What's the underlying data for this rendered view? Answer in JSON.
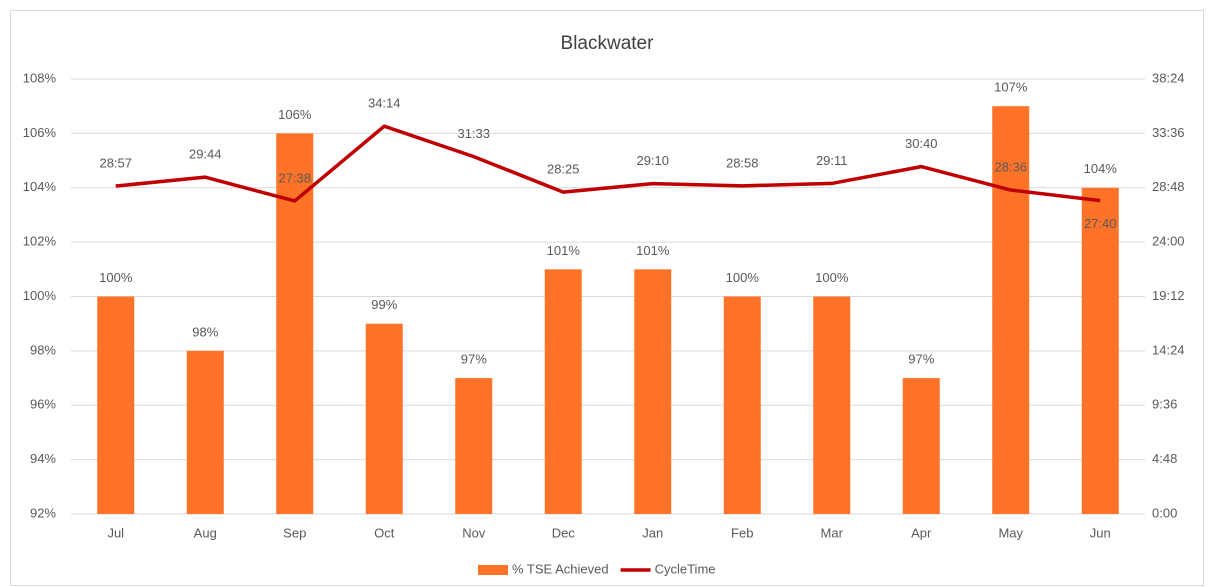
{
  "chart_data": {
    "type": "bar",
    "title": "Blackwater",
    "categories": [
      "Jul",
      "Aug",
      "Sep",
      "Oct",
      "Nov",
      "Dec",
      "Jan",
      "Feb",
      "Mar",
      "Apr",
      "May",
      "Jun"
    ],
    "series": [
      {
        "name": "% TSE Achieved",
        "color": "#ff7328",
        "type": "bar",
        "values": [
          100,
          98,
          106,
          99,
          97,
          101,
          101,
          100,
          100,
          97,
          107,
          104
        ],
        "value_labels": [
          "100%",
          "98%",
          "106%",
          "99%",
          "97%",
          "101%",
          "101%",
          "100%",
          "100%",
          "97%",
          "107%",
          "104%"
        ]
      },
      {
        "name": "CycleTime",
        "color": "#c00000",
        "type": "line",
        "axis": "y2",
        "values": [
          1737,
          1784,
          1658,
          2054,
          1893,
          1705,
          1750,
          1738,
          1751,
          1840,
          1716,
          1660
        ],
        "value_labels": [
          "28:57",
          "29:44",
          "27:38",
          "34:14",
          "31:33",
          "28:25",
          "29:10",
          "28:58",
          "29:11",
          "30:40",
          "28:36",
          "27:40"
        ]
      }
    ],
    "ylim": [
      92,
      108
    ],
    "yticks": [
      {
        "value": 92,
        "label": "92%"
      },
      {
        "value": 94,
        "label": "94%"
      },
      {
        "value": 96,
        "label": "96%"
      },
      {
        "value": 98,
        "label": "98%"
      },
      {
        "value": 100,
        "label": "100%"
      },
      {
        "value": 102,
        "label": "102%"
      },
      {
        "value": 104,
        "label": "104%"
      },
      {
        "value": 106,
        "label": "106%"
      },
      {
        "value": 108,
        "label": "108%"
      }
    ],
    "y2lim": [
      0,
      2304
    ],
    "y2ticks": [
      {
        "value": 0,
        "label": "0:00"
      },
      {
        "value": 288,
        "label": "4:48"
      },
      {
        "value": 576,
        "label": "9:36"
      },
      {
        "value": 864,
        "label": "14:24"
      },
      {
        "value": 1152,
        "label": "19:12"
      },
      {
        "value": 1440,
        "label": "24:00"
      },
      {
        "value": 1728,
        "label": "28:48"
      },
      {
        "value": 2016,
        "label": "33:36"
      },
      {
        "value": 2304,
        "label": "38:24"
      }
    ],
    "grid": true,
    "legend": "bottom"
  }
}
